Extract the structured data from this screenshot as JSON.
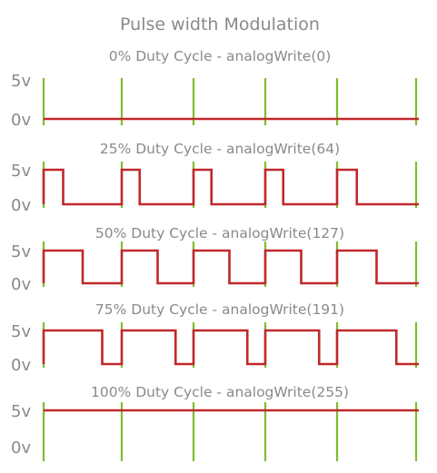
{
  "title": "Pulse width Modulation",
  "voltage_high_label": "5v",
  "voltage_low_label": "0v",
  "colors": {
    "clock_marker": "#7cbf2e",
    "signal": "#c0282b",
    "text": "#8a8a8a",
    "background": "#ffffff"
  },
  "panels": [
    {
      "title": "0% Duty Cycle - analogWrite(0)",
      "duty_cycle": 0,
      "analog_value": 0
    },
    {
      "title": "25% Duty Cycle - analogWrite(64)",
      "duty_cycle": 0.25,
      "analog_value": 64
    },
    {
      "title": "50% Duty Cycle - analogWrite(127)",
      "duty_cycle": 0.5,
      "analog_value": 127
    },
    {
      "title": "75% Duty Cycle - analogWrite(191)",
      "duty_cycle": 0.75,
      "analog_value": 191
    },
    {
      "title": "100% Duty Cycle - analogWrite(255)",
      "duty_cycle": 1,
      "analog_value": 255
    }
  ]
}
